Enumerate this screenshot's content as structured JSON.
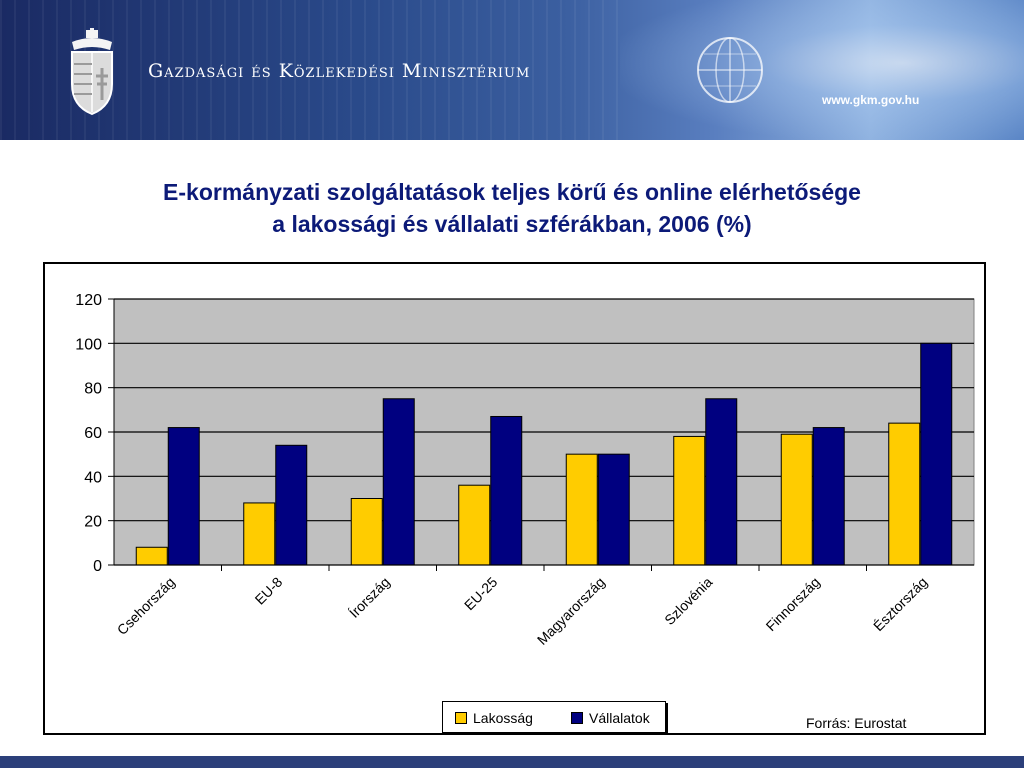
{
  "header": {
    "organization": "Gazdasági és Közlekedési Minisztérium",
    "website": "www.gkm.gov.hu",
    "icons": [
      "hungarian-coat-of-arms-icon",
      "globe-icon"
    ]
  },
  "colors": {
    "banner_dark": "#1a2a63",
    "title_color": "#0c1a78",
    "plot_background": "#c0c0c0",
    "series_lakossag": "#ffcc00",
    "series_vallalatok": "#000080"
  },
  "chart_data": {
    "type": "bar",
    "title_line1": "E-kormányzati szolgáltatások teljes körű és online elérhetősége",
    "title_line2": "a lakossági és vállalati szférákban, 2006 (%)",
    "xlabel": "",
    "ylabel": "",
    "ylim": [
      0,
      120
    ],
    "yticks": [
      0,
      20,
      40,
      60,
      80,
      100,
      120
    ],
    "grid": true,
    "legend_position": "bottom-center",
    "categories": [
      "Csehország",
      "EU-8",
      "Írország",
      "EU-25",
      "Magyarország",
      "Szlovénia",
      "Finnország",
      "Észtország"
    ],
    "series": [
      {
        "name": "Lakosság",
        "color": "#ffcc00",
        "values": [
          8,
          28,
          30,
          36,
          50,
          58,
          59,
          64
        ]
      },
      {
        "name": "Vállalatok",
        "color": "#000080",
        "values": [
          62,
          54,
          75,
          67,
          50,
          75,
          62,
          100
        ]
      }
    ],
    "source": "Forrás: Eurostat"
  }
}
